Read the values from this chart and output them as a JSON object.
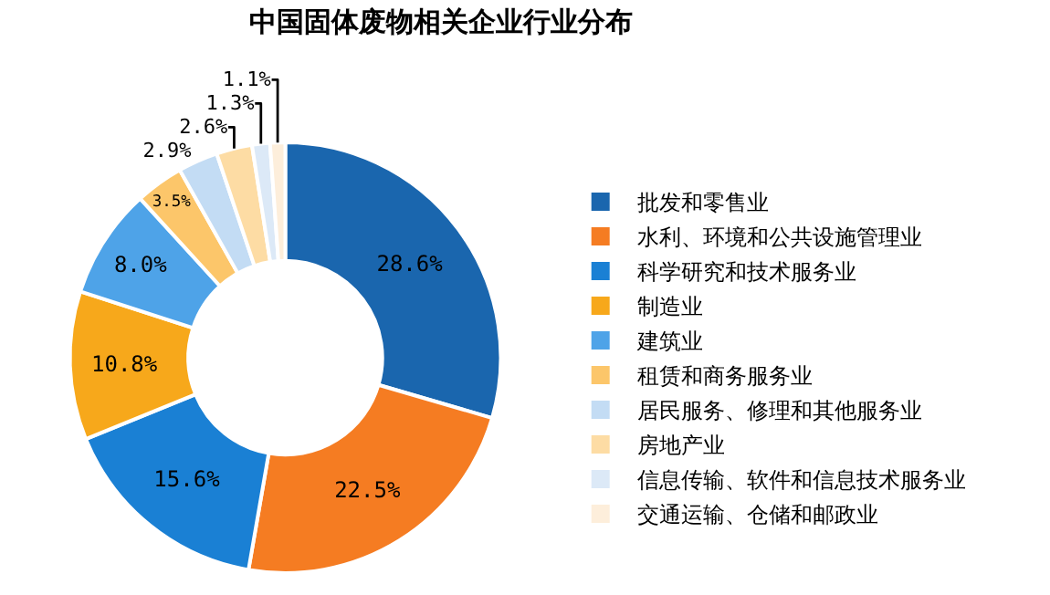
{
  "chart_data": {
    "type": "donut",
    "title": "中国固体废物相关企业行业分布",
    "categories": [
      "批发和零售业",
      "水利、环境和公共设施管理业",
      "科学研究和技术服务业",
      "制造业",
      "建筑业",
      "租赁和商务服务业",
      "居民服务、修理和其他服务业",
      "房地产业",
      "信息传输、软件和信息技术服务业",
      "交通运输、仓储和邮政业"
    ],
    "values": [
      28.6,
      22.5,
      15.6,
      10.8,
      8.0,
      3.5,
      2.9,
      2.6,
      1.3,
      1.1
    ],
    "value_labels": [
      "28.6%",
      "22.5%",
      "15.6%",
      "10.8%",
      "8.0%",
      "3.5%",
      "2.9%",
      "2.6%",
      "1.3%",
      "1.1%"
    ],
    "colors": [
      "#1a66ae",
      "#f57c22",
      "#1a80d4",
      "#f7a81b",
      "#4ea3e8",
      "#fcc66a",
      "#c3dcf4",
      "#fddca4",
      "#dce9f7",
      "#fdeedb"
    ],
    "legend": "right"
  }
}
